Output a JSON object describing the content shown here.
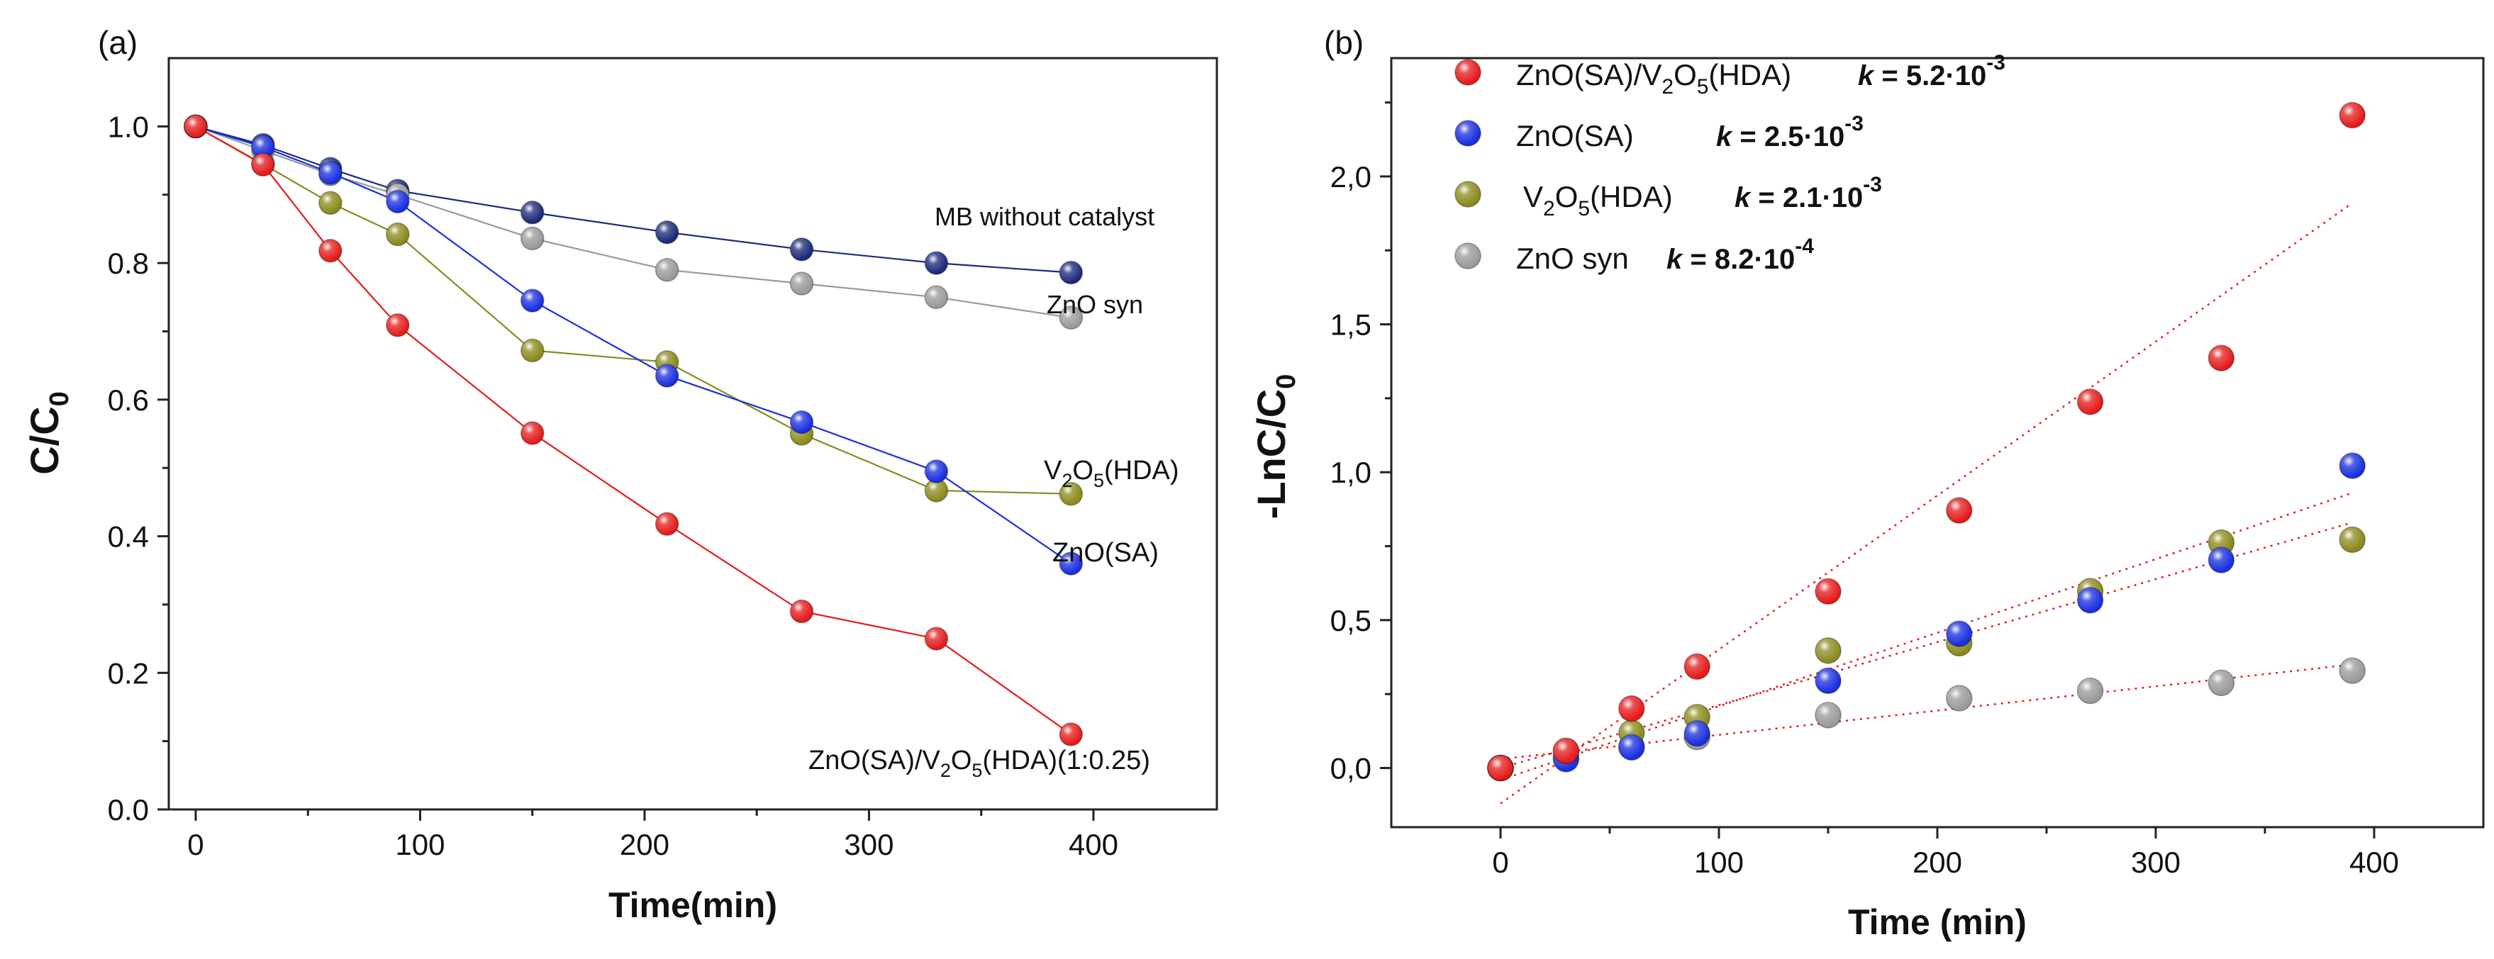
{
  "chart_data": [
    {
      "panel": "(a)",
      "type": "line",
      "xlabel": "Time(min)",
      "ylabel_main": "C/C",
      "ylabel_sub": "0",
      "xlim": [
        -12,
        455
      ],
      "ylim": [
        0,
        1.1
      ],
      "xticks": [
        0,
        100,
        200,
        300,
        400
      ],
      "yticks": [
        0.0,
        0.2,
        0.4,
        0.6,
        0.8,
        1.0
      ],
      "ytick_labels": [
        "0.0",
        "0.2",
        "0.4",
        "0.6",
        "0.8",
        "1.0"
      ],
      "x": [
        0,
        30,
        60,
        90,
        150,
        210,
        270,
        330,
        390
      ],
      "series": [
        {
          "name": "MB without catalyst",
          "color": "#1c2a7a",
          "label_parts": [
            {
              "t": "MB without catalyst"
            }
          ],
          "values": [
            1.0,
            0.973,
            0.938,
            0.906,
            0.874,
            0.845,
            0.82,
            0.8,
            0.786
          ]
        },
        {
          "name": "ZnO syn",
          "color": "#9a9a9a",
          "label_parts": [
            {
              "t": "ZnO syn"
            }
          ],
          "values": [
            1.0,
            0.965,
            0.93,
            0.9,
            0.836,
            0.79,
            0.77,
            0.75,
            0.72
          ]
        },
        {
          "name": "V2O5(HDA)",
          "color": "#8b8a1c",
          "label_parts": [
            {
              "t": "V"
            },
            {
              "t": "2",
              "sub": true
            },
            {
              "t": "O"
            },
            {
              "t": "5",
              "sub": true
            },
            {
              "t": "(HDA)"
            }
          ],
          "values": [
            1.0,
            0.945,
            0.888,
            0.842,
            0.672,
            0.655,
            0.55,
            0.467,
            0.462
          ]
        },
        {
          "name": "ZnO(SA)",
          "color": "#1a2fe0",
          "label_parts": [
            {
              "t": "ZnO(SA)"
            }
          ],
          "values": [
            1.0,
            0.97,
            0.932,
            0.89,
            0.745,
            0.635,
            0.567,
            0.495,
            0.36
          ]
        },
        {
          "name": "ZnO(SA)/V2O5(HDA)(1:0.25)",
          "color": "#e51b1b",
          "label_parts": [
            {
              "t": "ZnO(SA)/V"
            },
            {
              "t": "2",
              "sub": true
            },
            {
              "t": "O"
            },
            {
              "t": "5",
              "sub": true
            },
            {
              "t": "(HDA)(1:0.25)"
            }
          ],
          "values": [
            1.0,
            0.944,
            0.818,
            0.709,
            0.551,
            0.418,
            0.29,
            0.25,
            0.11
          ]
        }
      ]
    },
    {
      "panel": "(b)",
      "type": "scatter",
      "xlabel": "Time (min)",
      "ylabel_main": "-LnC/C",
      "ylabel_sub": "0",
      "xlim": [
        -50,
        450
      ],
      "ylim": [
        -0.2,
        2.4
      ],
      "xticks": [
        0,
        100,
        200,
        300,
        400
      ],
      "yticks": [
        0.0,
        0.5,
        1.0,
        1.5,
        2.0
      ],
      "ytick_labels": [
        "0,0",
        "0,5",
        "1,0",
        "1,5",
        "2,0"
      ],
      "x": [
        0,
        30,
        60,
        90,
        150,
        210,
        270,
        330,
        390
      ],
      "series": [
        {
          "name": "ZnO(SA)/V2O5(HDA)",
          "color": "#e51b1b",
          "label_parts": [
            {
              "t": "ZnO(SA)/V"
            },
            {
              "t": "2",
              "sub": true
            },
            {
              "t": "O"
            },
            {
              "t": "5",
              "sub": true
            },
            {
              "t": "(HDA)"
            }
          ],
          "k_prefix": "k = 5.2·10",
          "k_exp": "-3",
          "values": [
            0.0,
            0.058,
            0.201,
            0.343,
            0.597,
            0.871,
            1.238,
            1.386,
            2.207
          ],
          "fit": [
            [
              0,
              -0.12
            ],
            [
              390,
              1.91
            ]
          ]
        },
        {
          "name": "ZnO(SA)",
          "color": "#1a2fe0",
          "label_parts": [
            {
              "t": "ZnO(SA)"
            }
          ],
          "k_prefix": "k = 2.5·10",
          "k_exp": "-3",
          "values": [
            0.0,
            0.03,
            0.07,
            0.117,
            0.295,
            0.454,
            0.567,
            0.703,
            1.022
          ],
          "fit": [
            [
              0,
              -0.04
            ],
            [
              390,
              0.93
            ]
          ]
        },
        {
          "name": "V2O5(HDA)",
          "color": "#8b8a1c",
          "label_parts": [
            {
              "t": "V"
            },
            {
              "t": "2",
              "sub": true
            },
            {
              "t": "O"
            },
            {
              "t": "5",
              "sub": true
            },
            {
              "t": "(HDA)"
            }
          ],
          "k_prefix": "k = 2.1·10",
          "k_exp": "-3",
          "values": [
            0.0,
            0.057,
            0.119,
            0.172,
            0.397,
            0.422,
            0.598,
            0.762,
            0.772
          ],
          "fit": [
            [
              0,
              0.0
            ],
            [
              390,
              0.83
            ]
          ]
        },
        {
          "name": "ZnO syn",
          "color": "#9a9a9a",
          "label_parts": [
            {
              "t": "ZnO syn"
            }
          ],
          "k_prefix": "k = 8.2·10",
          "k_exp": "-4",
          "values": [
            0.0,
            0.036,
            0.073,
            0.105,
            0.179,
            0.236,
            0.261,
            0.288,
            0.329
          ],
          "fit": [
            [
              0,
              0.03
            ],
            [
              390,
              0.35
            ]
          ]
        }
      ]
    }
  ]
}
